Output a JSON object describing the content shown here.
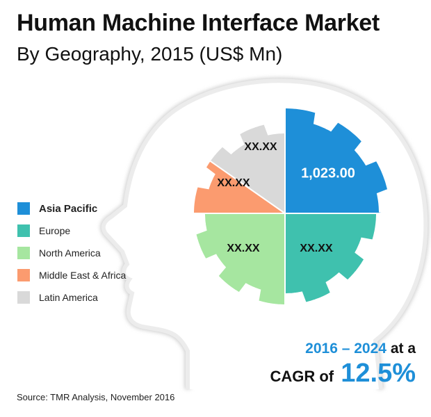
{
  "header": {
    "title": "Human Machine Interface Market",
    "subtitle": "By Geography, 2015 (US$ Mn)"
  },
  "chart_data": {
    "type": "pie",
    "title": "Human Machine Interface Market",
    "subtitle": "By Geography, 2015 (US$ Mn)",
    "legend_position": "left",
    "slices": [
      {
        "name": "Asia Pacific",
        "label": "1,023.00",
        "value": 1023.0,
        "color": "#1e8fd8"
      },
      {
        "name": "Europe",
        "label": "XX.XX",
        "value": null,
        "color": "#3fc1ae"
      },
      {
        "name": "North America",
        "label": "XX.XX",
        "value": null,
        "color": "#a6e6a0"
      },
      {
        "name": "Middle East & Africa",
        "label": "XX.XX",
        "value": null,
        "color": "#fb9b6f"
      },
      {
        "name": "Latin America",
        "label": "XX.XX",
        "value": null,
        "color": "#d9d9d9"
      }
    ]
  },
  "legend": {
    "items": [
      {
        "label": "Asia Pacific",
        "color": "#1e8fd8"
      },
      {
        "label": "Europe",
        "color": "#3fc1ae"
      },
      {
        "label": "North America",
        "color": "#a6e6a0"
      },
      {
        "label": "Middle East & Africa",
        "color": "#fb9b6f"
      },
      {
        "label": "Latin America",
        "color": "#d9d9d9"
      }
    ]
  },
  "cagr": {
    "years": "2016 – 2024",
    "at_a": "at a",
    "prefix": "CAGR of",
    "rate": "12.5%"
  },
  "source": "Source: TMR Analysis, November 2016",
  "colors": {
    "accent": "#1e8fd8",
    "head_outline": "#e4e4e4"
  }
}
